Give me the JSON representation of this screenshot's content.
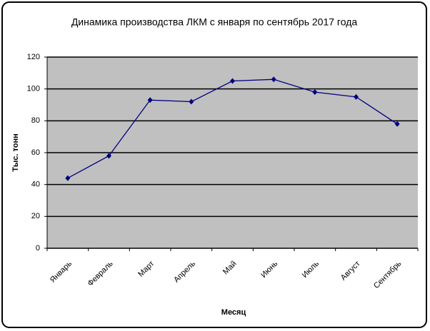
{
  "chart_data": {
    "type": "line",
    "title": "Динамика производства ЛКМ с января по сентябрь 2017 года",
    "x_label": "Месяц",
    "y_label": "Тыс. тонн",
    "categories": [
      "Январь",
      "Февраль",
      "Март",
      "Апрель",
      "Май",
      "Июнь",
      "Июль",
      "Август",
      "Сентябрь"
    ],
    "values": [
      44,
      58,
      93,
      92,
      105,
      106,
      98,
      95,
      78
    ],
    "color": "#000080",
    "ylim": [
      0,
      120
    ],
    "yticks": [
      0,
      20,
      40,
      60,
      80,
      100,
      120
    ],
    "grid": true
  }
}
